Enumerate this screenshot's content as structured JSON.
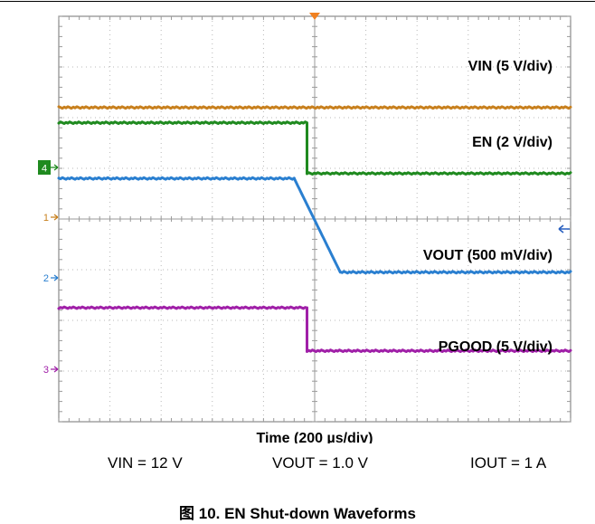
{
  "chart_data": {
    "type": "line",
    "title": "",
    "xlabel": "Time (200 µs/div)",
    "ylabel": "",
    "grid": true,
    "x_divisions": 10,
    "y_divisions": 8,
    "x_range_div": [
      -5,
      5
    ],
    "y_range_div": [
      -4,
      4
    ],
    "series": [
      {
        "name": "VIN (5 V/div)",
        "label": "VIN (5 V/div)",
        "color": "#c8801e",
        "ground_marker": "1",
        "x_div": [
          -5,
          5
        ],
        "y_div": [
          2.2,
          2.2
        ]
      },
      {
        "name": "EN (2 V/div)",
        "label": "EN (2 V/div)",
        "color": "#1f8a1f",
        "ground_marker": "4",
        "x_div": [
          -5,
          -0.15,
          -0.15,
          5
        ],
        "y_div": [
          1.9,
          1.9,
          0.9,
          0.9
        ]
      },
      {
        "name": "VOUT (500 mV/div)",
        "label": "VOUT (500 mV/div)",
        "color": "#2a7fd0",
        "ground_marker": "2",
        "x_div": [
          -5,
          -0.4,
          0.5,
          5
        ],
        "y_div": [
          0.8,
          0.8,
          -1.05,
          -1.05
        ]
      },
      {
        "name": "PGOOD (5 V/div)",
        "label": "PGOOD (5 V/div)",
        "color": "#a020a8",
        "ground_marker": "3",
        "x_div": [
          -5,
          -0.15,
          -0.15,
          5
        ],
        "y_div": [
          -1.75,
          -1.75,
          -2.6,
          -2.6
        ]
      }
    ]
  },
  "conditions": {
    "vin": "VIN = 12 V",
    "vout": "VOUT = 1.0 V",
    "iout": "IOUT = 1 A"
  },
  "caption": "图 10. EN Shut-down Waveforms"
}
